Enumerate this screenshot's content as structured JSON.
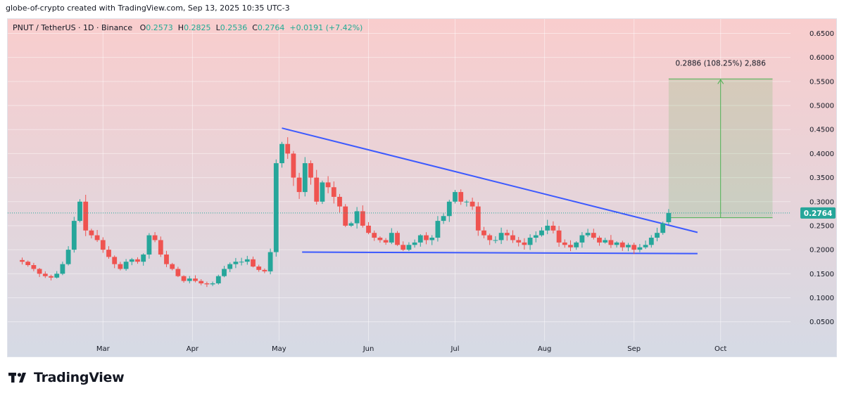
{
  "caption": "globe-of-crypto created with TradingView.com, Sep 13, 2025 10:35 UTC-3",
  "legend": {
    "symbol": "PNUT / TetherUS · 1D · Binance",
    "o_label": "O",
    "o_value": "0.2573",
    "h_label": "H",
    "h_value": "0.2825",
    "l_label": "L",
    "l_value": "0.2536",
    "c_label": "C",
    "c_value": "0.2764",
    "change": "+0.0191 (+7.42%)"
  },
  "logo_text": "TradingView",
  "colors": {
    "up": "#26a69a",
    "down": "#ef5350",
    "trendline": "#3d5afe",
    "target": "#4caf50",
    "bg_top": "#f9cdcd",
    "bg_bottom": "#d5dae5"
  },
  "chart_data": {
    "type": "candlestick",
    "x_axis_labels": [
      "Mar",
      "Apr",
      "May",
      "Jun",
      "Jul",
      "Aug",
      "Sep",
      "Oct"
    ],
    "y_axis_labels": [
      "0.6500",
      "0.6000",
      "0.5500",
      "0.5000",
      "0.4500",
      "0.4000",
      "0.3500",
      "0.3000",
      "0.2500",
      "0.2000",
      "0.1500",
      "0.1000",
      "0.0500"
    ],
    "ylim": [
      0.01,
      0.68
    ],
    "last_price": "0.2764",
    "last_price_value": 0.2764,
    "measure": {
      "label": "0.2886 (108.25%) 2,886",
      "from_price": 0.2666,
      "to_price": 0.5552,
      "start_date": "2025-09-13",
      "end_date": "2025-10-19"
    },
    "trendlines": [
      {
        "name": "upper",
        "start": [
          "2025-05-02",
          0.453
        ],
        "end": [
          "2025-09-23",
          0.236
        ]
      },
      {
        "name": "lower",
        "start": [
          "2025-05-09",
          0.195
        ],
        "end": [
          "2025-09-23",
          0.192
        ]
      }
    ],
    "series": {
      "dates": [
        "2025-02-01",
        "2025-02-03",
        "2025-02-05",
        "2025-02-07",
        "2025-02-09",
        "2025-02-11",
        "2025-02-13",
        "2025-02-15",
        "2025-02-17",
        "2025-02-19",
        "2025-02-21",
        "2025-02-23",
        "2025-02-25",
        "2025-02-27",
        "2025-03-01",
        "2025-03-03",
        "2025-03-05",
        "2025-03-07",
        "2025-03-09",
        "2025-03-11",
        "2025-03-13",
        "2025-03-15",
        "2025-03-17",
        "2025-03-19",
        "2025-03-21",
        "2025-03-23",
        "2025-03-25",
        "2025-03-27",
        "2025-03-29",
        "2025-03-31",
        "2025-04-02",
        "2025-04-04",
        "2025-04-06",
        "2025-04-08",
        "2025-04-10",
        "2025-04-12",
        "2025-04-14",
        "2025-04-16",
        "2025-04-18",
        "2025-04-20",
        "2025-04-22",
        "2025-04-24",
        "2025-04-26",
        "2025-04-28",
        "2025-04-30",
        "2025-05-02",
        "2025-05-04",
        "2025-05-06",
        "2025-05-08",
        "2025-05-10",
        "2025-05-12",
        "2025-05-14",
        "2025-05-16",
        "2025-05-18",
        "2025-05-20",
        "2025-05-22",
        "2025-05-24",
        "2025-05-26",
        "2025-05-28",
        "2025-05-30",
        "2025-06-01",
        "2025-06-03",
        "2025-06-05",
        "2025-06-07",
        "2025-06-09",
        "2025-06-11",
        "2025-06-13",
        "2025-06-15",
        "2025-06-17",
        "2025-06-19",
        "2025-06-21",
        "2025-06-23",
        "2025-06-25",
        "2025-06-27",
        "2025-06-29",
        "2025-07-01",
        "2025-07-03",
        "2025-07-05",
        "2025-07-07",
        "2025-07-09",
        "2025-07-11",
        "2025-07-13",
        "2025-07-15",
        "2025-07-17",
        "2025-07-19",
        "2025-07-21",
        "2025-07-23",
        "2025-07-25",
        "2025-07-27",
        "2025-07-29",
        "2025-07-31",
        "2025-08-02",
        "2025-08-04",
        "2025-08-06",
        "2025-08-08",
        "2025-08-10",
        "2025-08-12",
        "2025-08-14",
        "2025-08-16",
        "2025-08-18",
        "2025-08-20",
        "2025-08-22",
        "2025-08-24",
        "2025-08-26",
        "2025-08-28",
        "2025-08-30",
        "2025-09-01",
        "2025-09-03",
        "2025-09-05",
        "2025-09-07",
        "2025-09-09",
        "2025-09-11",
        "2025-09-13"
      ],
      "close": [
        0.175,
        0.168,
        0.16,
        0.15,
        0.145,
        0.142,
        0.15,
        0.17,
        0.2,
        0.26,
        0.3,
        0.24,
        0.23,
        0.22,
        0.2,
        0.185,
        0.17,
        0.16,
        0.175,
        0.18,
        0.175,
        0.19,
        0.23,
        0.22,
        0.19,
        0.17,
        0.16,
        0.145,
        0.135,
        0.14,
        0.135,
        0.13,
        0.128,
        0.13,
        0.145,
        0.16,
        0.17,
        0.175,
        0.175,
        0.18,
        0.165,
        0.158,
        0.155,
        0.195,
        0.38,
        0.42,
        0.4,
        0.35,
        0.32,
        0.38,
        0.35,
        0.3,
        0.34,
        0.33,
        0.31,
        0.29,
        0.25,
        0.255,
        0.28,
        0.25,
        0.235,
        0.225,
        0.22,
        0.215,
        0.235,
        0.21,
        0.2,
        0.21,
        0.215,
        0.23,
        0.22,
        0.225,
        0.26,
        0.27,
        0.3,
        0.32,
        0.3,
        0.3,
        0.29,
        0.24,
        0.23,
        0.22,
        0.22,
        0.235,
        0.23,
        0.22,
        0.215,
        0.21,
        0.225,
        0.23,
        0.24,
        0.25,
        0.24,
        0.215,
        0.21,
        0.205,
        0.215,
        0.23,
        0.235,
        0.225,
        0.215,
        0.22,
        0.21,
        0.215,
        0.205,
        0.21,
        0.2,
        0.205,
        0.21,
        0.225,
        0.235,
        0.255,
        0.2764
      ]
    }
  }
}
